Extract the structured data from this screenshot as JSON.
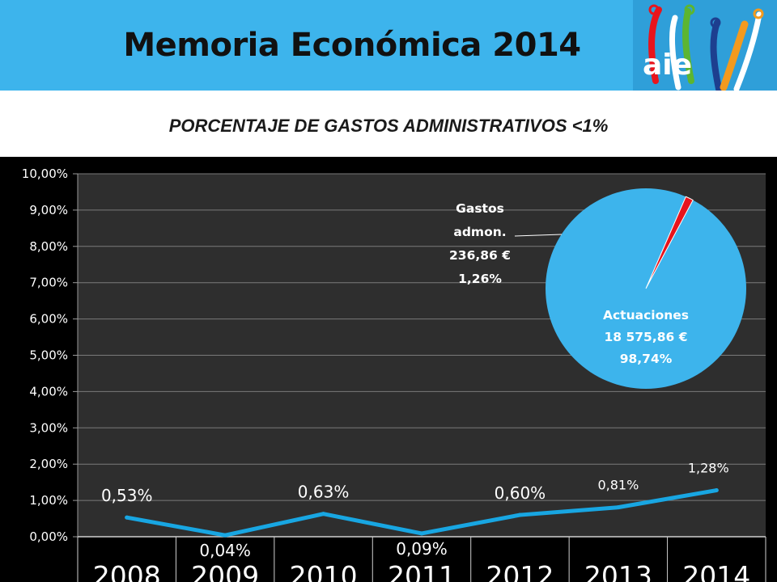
{
  "header": {
    "title": "Memoria Económica 2014",
    "logo_text": "aie"
  },
  "subtitle": "PORCENTAJE DE GASTOS ADMINISTRATIVOS <1%",
  "colors": {
    "header_bg": "#3db4ec",
    "line": "#18a6e2",
    "pie_main": "#3db4ec",
    "pie_slice": "#e8141c",
    "plot_bg": "#2e2e2e"
  },
  "chart_data": [
    {
      "type": "line",
      "categories": [
        "2008",
        "2009",
        "2010",
        "2011",
        "2012",
        "2013",
        "2014"
      ],
      "values": [
        0.53,
        0.04,
        0.63,
        0.09,
        0.6,
        0.81,
        1.28
      ],
      "data_labels": [
        "0,53%",
        "0,04%",
        "0,63%",
        "0,09%",
        "0,60%",
        "0,81%",
        "1,28%"
      ],
      "y_ticks": [
        "0,00%",
        "1,00%",
        "2,00%",
        "3,00%",
        "4,00%",
        "5,00%",
        "6,00%",
        "7,00%",
        "8,00%",
        "9,00%",
        "10,00%"
      ],
      "ylim": [
        0,
        10
      ],
      "grid": true,
      "legend": "none"
    },
    {
      "type": "pie",
      "slices": [
        {
          "name": "Gastos admon.",
          "amount": "236,86 €",
          "percent_label": "1,26%",
          "value": 1.26,
          "lines": [
            "Gastos",
            "admon.",
            "236,86 €",
            "1,26%"
          ]
        },
        {
          "name": "Actuaciones",
          "amount": "18 575,86 €",
          "percent_label": "98,74%",
          "value": 98.74,
          "lines": [
            "Actuaciones",
            "18 575,86 €",
            "98,74%"
          ]
        }
      ]
    }
  ]
}
